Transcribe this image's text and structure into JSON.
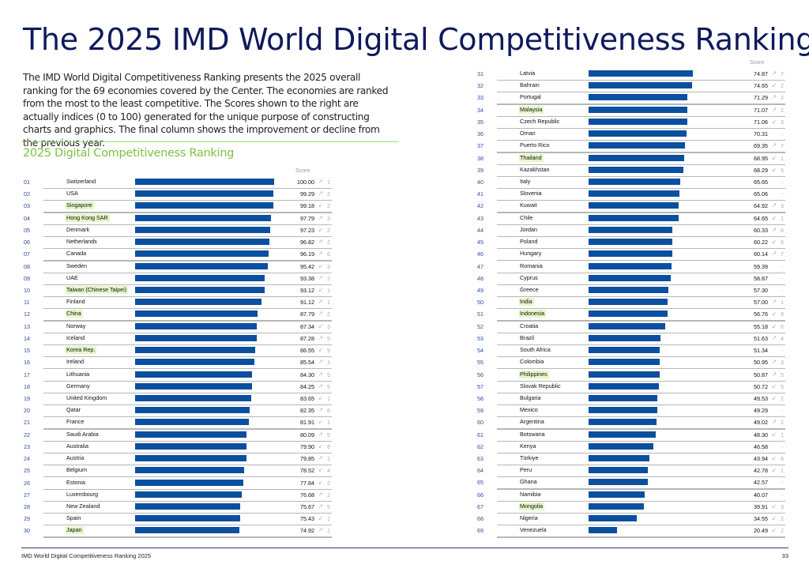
{
  "page": {
    "title": "The 2025 IMD World Digital Competitiveness Ranking",
    "intro": "The IMD World Digital Competitiveness Ranking presents the 2025 overall ranking for the 69 economies covered by the Center. The economies are ranked from the most to the least competitive. The Scores shown to the right are actually indices (0 to 100) generated for the unique purpose of constructing charts and graphics. The final column shows the improvement or decline from the previous year.",
    "section_title": "2025 Digital Competitiveness Ranking",
    "score_header": "Score",
    "footer_left": "IMD World Digital Competitiveness Ranking 2025",
    "footer_page": "33"
  },
  "colors": {
    "title": "#0f1a5c",
    "bar": "#0b4f9f",
    "section_title": "#7cc242",
    "asia_highlight": "#e6f7c8",
    "rank": "#2a4ea0"
  },
  "chart_data": {
    "type": "bar",
    "orientation": "horizontal",
    "title": "2025 Digital Competitiveness Ranking",
    "xlabel": "Score",
    "xlim": [
      0,
      100
    ],
    "grid": false,
    "legend": "none",
    "notes": "highlight = true marks economies shown with a light green name background; direction: up = improved, down = declined, none = no change shown ('-')",
    "rows": [
      {
        "rank": "01",
        "name": "Switzerland",
        "score": 100.0,
        "direction": "up",
        "change": "1",
        "highlight": false
      },
      {
        "rank": "02",
        "name": "USA",
        "score": 99.29,
        "direction": "up",
        "change": "2",
        "highlight": false
      },
      {
        "rank": "03",
        "name": "Singapore",
        "score": 99.18,
        "direction": "down",
        "change": "2",
        "highlight": true
      },
      {
        "rank": "04",
        "name": "Hong Kong SAR",
        "score": 97.79,
        "direction": "up",
        "change": "3",
        "highlight": true
      },
      {
        "rank": "05",
        "name": "Denmark",
        "score": 97.23,
        "direction": "down",
        "change": "2",
        "highlight": false
      },
      {
        "rank": "06",
        "name": "Netherlands",
        "score": 96.82,
        "direction": "up",
        "change": "2",
        "highlight": false
      },
      {
        "rank": "07",
        "name": "Canada",
        "score": 96.19,
        "direction": "up",
        "change": "6",
        "highlight": false
      },
      {
        "rank": "08",
        "name": "Sweden",
        "score": 95.42,
        "direction": "down",
        "change": "3",
        "highlight": false
      },
      {
        "rank": "09",
        "name": "UAE",
        "score": 93.38,
        "direction": "up",
        "change": "2",
        "highlight": false
      },
      {
        "rank": "10",
        "name": "Taiwan (Chinese Taipei)",
        "score": 93.12,
        "direction": "down",
        "change": "1",
        "highlight": true
      },
      {
        "rank": "11",
        "name": "Finland",
        "score": 91.12,
        "direction": "up",
        "change": "1",
        "highlight": false
      },
      {
        "rank": "12",
        "name": "China",
        "score": 87.79,
        "direction": "up",
        "change": "2",
        "highlight": true
      },
      {
        "rank": "13",
        "name": "Norway",
        "score": 87.34,
        "direction": "down",
        "change": "3",
        "highlight": false
      },
      {
        "rank": "14",
        "name": "Iceland",
        "score": 87.28,
        "direction": "up",
        "change": "5",
        "highlight": false
      },
      {
        "rank": "15",
        "name": "Korea Rep.",
        "score": 86.55,
        "direction": "down",
        "change": "9",
        "highlight": true
      },
      {
        "rank": "16",
        "name": "Ireland",
        "score": 85.54,
        "direction": "up",
        "change": "1",
        "highlight": false
      },
      {
        "rank": "17",
        "name": "Lithuania",
        "score": 84.3,
        "direction": "up",
        "change": "5",
        "highlight": false
      },
      {
        "rank": "18",
        "name": "Germany",
        "score": 84.25,
        "direction": "up",
        "change": "5",
        "highlight": false
      },
      {
        "rank": "19",
        "name": "United Kingdom",
        "score": 83.65,
        "direction": "down",
        "change": "1",
        "highlight": false
      },
      {
        "rank": "20",
        "name": "Qatar",
        "score": 82.35,
        "direction": "up",
        "change": "6",
        "highlight": false
      },
      {
        "rank": "21",
        "name": "France",
        "score": 81.91,
        "direction": "down",
        "change": "1",
        "highlight": false
      },
      {
        "rank": "22",
        "name": "Saudi Arabia",
        "score": 80.09,
        "direction": "up",
        "change": "5",
        "highlight": false
      },
      {
        "rank": "23",
        "name": "Australia",
        "score": 79.9,
        "direction": "down",
        "change": "8",
        "highlight": false
      },
      {
        "rank": "24",
        "name": "Austria",
        "score": 79.85,
        "direction": "up",
        "change": "1",
        "highlight": false
      },
      {
        "rank": "25",
        "name": "Belgium",
        "score": 78.52,
        "direction": "down",
        "change": "4",
        "highlight": false
      },
      {
        "rank": "26",
        "name": "Estonia",
        "score": 77.84,
        "direction": "down",
        "change": "2",
        "highlight": false
      },
      {
        "rank": "27",
        "name": "Luxembourg",
        "score": 76.68,
        "direction": "up",
        "change": "2",
        "highlight": false
      },
      {
        "rank": "28",
        "name": "New Zealand",
        "score": 75.67,
        "direction": "up",
        "change": "5",
        "highlight": false
      },
      {
        "rank": "29",
        "name": "Spain",
        "score": 75.43,
        "direction": "down",
        "change": "1",
        "highlight": false
      },
      {
        "rank": "30",
        "name": "Japan",
        "score": 74.92,
        "direction": "up",
        "change": "1",
        "highlight": true
      },
      {
        "rank": "31",
        "name": "Latvia",
        "score": 74.87,
        "direction": "up",
        "change": "7",
        "highlight": false
      },
      {
        "rank": "32",
        "name": "Bahrain",
        "score": 74.65,
        "direction": "down",
        "change": "2",
        "highlight": false
      },
      {
        "rank": "33",
        "name": "Portugal",
        "score": 71.29,
        "direction": "up",
        "change": "2",
        "highlight": false
      },
      {
        "rank": "34",
        "name": "Malaysia",
        "score": 71.07,
        "direction": "up",
        "change": "2",
        "highlight": true
      },
      {
        "rank": "35",
        "name": "Czech Republic",
        "score": 71.06,
        "direction": "down",
        "change": "3",
        "highlight": false
      },
      {
        "rank": "36",
        "name": "Oman",
        "score": 70.31,
        "direction": "none",
        "change": "-",
        "highlight": false
      },
      {
        "rank": "37",
        "name": "Puerto Rico",
        "score": 69.35,
        "direction": "up",
        "change": "7",
        "highlight": false
      },
      {
        "rank": "38",
        "name": "Thailand",
        "score": 68.95,
        "direction": "down",
        "change": "1",
        "highlight": true
      },
      {
        "rank": "39",
        "name": "Kazakhstan",
        "score": 68.29,
        "direction": "down",
        "change": "5",
        "highlight": false
      },
      {
        "rank": "40",
        "name": "Italy",
        "score": 65.65,
        "direction": "none",
        "change": "-",
        "highlight": false
      },
      {
        "rank": "41",
        "name": "Slovenia",
        "score": 65.06,
        "direction": "none",
        "change": "-",
        "highlight": false
      },
      {
        "rank": "42",
        "name": "Kuwait",
        "score": 64.92,
        "direction": "up",
        "change": "3",
        "highlight": false
      },
      {
        "rank": "43",
        "name": "Chile",
        "score": 64.65,
        "direction": "down",
        "change": "1",
        "highlight": false
      },
      {
        "rank": "44",
        "name": "Jordan",
        "score": 60.33,
        "direction": "up",
        "change": "6",
        "highlight": false
      },
      {
        "rank": "45",
        "name": "Poland",
        "score": 60.22,
        "direction": "down",
        "change": "6",
        "highlight": false
      },
      {
        "rank": "46",
        "name": "Hungary",
        "score": 60.14,
        "direction": "up",
        "change": "7",
        "highlight": false
      },
      {
        "rank": "47",
        "name": "Romania",
        "score": 59.39,
        "direction": "none",
        "change": "-",
        "highlight": false
      },
      {
        "rank": "48",
        "name": "Cyprus",
        "score": 58.87,
        "direction": "none",
        "change": "-",
        "highlight": false
      },
      {
        "rank": "49",
        "name": "Greece",
        "score": 57.3,
        "direction": "none",
        "change": "-",
        "highlight": false
      },
      {
        "rank": "50",
        "name": "India",
        "score": 57.0,
        "direction": "up",
        "change": "1",
        "highlight": true
      },
      {
        "rank": "51",
        "name": "Indonesia",
        "score": 56.76,
        "direction": "down",
        "change": "8",
        "highlight": true
      },
      {
        "rank": "52",
        "name": "Croatia",
        "score": 55.18,
        "direction": "down",
        "change": "6",
        "highlight": false
      },
      {
        "rank": "53",
        "name": "Brazil",
        "score": 51.63,
        "direction": "up",
        "change": "4",
        "highlight": false
      },
      {
        "rank": "54",
        "name": "South Africa",
        "score": 51.34,
        "direction": "none",
        "change": "-",
        "highlight": false
      },
      {
        "rank": "55",
        "name": "Colombia",
        "score": 50.95,
        "direction": "up",
        "change": "3",
        "highlight": false
      },
      {
        "rank": "56",
        "name": "Philippines",
        "score": 50.87,
        "direction": "up",
        "change": "5",
        "highlight": true
      },
      {
        "rank": "57",
        "name": "Slovak Republic",
        "score": 50.72,
        "direction": "down",
        "change": "5",
        "highlight": false
      },
      {
        "rank": "58",
        "name": "Bulgaria",
        "score": 49.53,
        "direction": "down",
        "change": "2",
        "highlight": false
      },
      {
        "rank": "59",
        "name": "Mexico",
        "score": 49.29,
        "direction": "none",
        "change": "-",
        "highlight": false
      },
      {
        "rank": "60",
        "name": "Argentina",
        "score": 49.02,
        "direction": "up",
        "change": "2",
        "highlight": false
      },
      {
        "rank": "61",
        "name": "Botswana",
        "score": 48.3,
        "direction": "down",
        "change": "1",
        "highlight": false
      },
      {
        "rank": "62",
        "name": "Kenya",
        "score": 46.58,
        "direction": "none",
        "change": "-",
        "highlight": false
      },
      {
        "rank": "63",
        "name": "Türkiye",
        "score": 43.94,
        "direction": "down",
        "change": "8",
        "highlight": false
      },
      {
        "rank": "64",
        "name": "Peru",
        "score": 42.78,
        "direction": "down",
        "change": "1",
        "highlight": false
      },
      {
        "rank": "65",
        "name": "Ghana",
        "score": 42.57,
        "direction": "none",
        "change": "-",
        "highlight": false
      },
      {
        "rank": "66",
        "name": "Namibia",
        "score": 40.07,
        "direction": "none",
        "change": "-",
        "highlight": false
      },
      {
        "rank": "67",
        "name": "Mongolia",
        "score": 39.91,
        "direction": "down",
        "change": "3",
        "highlight": true
      },
      {
        "rank": "68",
        "name": "Nigeria",
        "score": 34.55,
        "direction": "down",
        "change": "2",
        "highlight": false
      },
      {
        "rank": "69",
        "name": "Venezuela",
        "score": 20.49,
        "direction": "down",
        "change": "2",
        "highlight": false
      }
    ]
  }
}
